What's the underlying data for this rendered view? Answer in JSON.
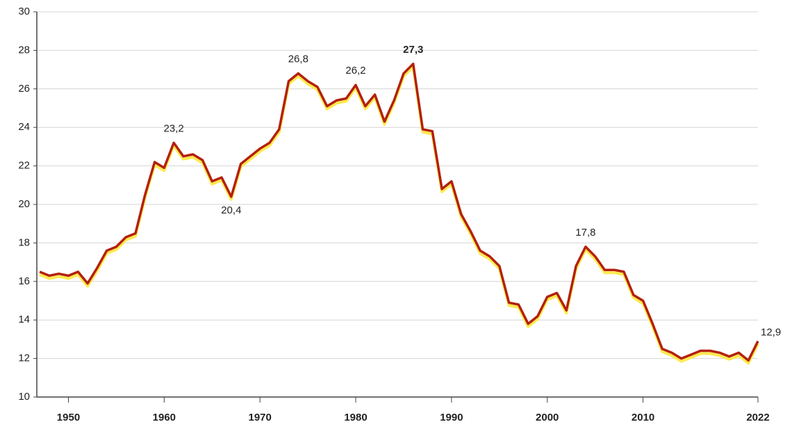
{
  "chart_data": {
    "type": "line",
    "x": [
      1947,
      1948,
      1949,
      1950,
      1951,
      1952,
      1953,
      1954,
      1955,
      1956,
      1957,
      1958,
      1959,
      1960,
      1961,
      1962,
      1963,
      1964,
      1965,
      1966,
      1967,
      1968,
      1969,
      1970,
      1971,
      1972,
      1973,
      1974,
      1975,
      1976,
      1977,
      1978,
      1979,
      1980,
      1981,
      1982,
      1983,
      1984,
      1985,
      1986,
      1987,
      1988,
      1989,
      1990,
      1991,
      1992,
      1993,
      1994,
      1995,
      1996,
      1997,
      1998,
      1999,
      2000,
      2001,
      2002,
      2003,
      2004,
      2005,
      2006,
      2007,
      2008,
      2009,
      2010,
      2011,
      2012,
      2013,
      2014,
      2015,
      2016,
      2017,
      2018,
      2019,
      2020,
      2021,
      2022
    ],
    "series": [
      {
        "color": "#b3200e",
        "shadow_color": "#ffe94d",
        "values": [
          16.5,
          16.3,
          16.4,
          16.3,
          16.5,
          15.9,
          16.7,
          17.6,
          17.8,
          18.3,
          18.5,
          20.5,
          22.2,
          21.9,
          23.2,
          22.5,
          22.6,
          22.3,
          21.2,
          21.4,
          20.4,
          22.1,
          22.5,
          22.9,
          23.2,
          23.9,
          26.4,
          26.8,
          26.4,
          26.1,
          25.1,
          25.4,
          25.5,
          26.2,
          25.1,
          25.7,
          24.3,
          25.4,
          26.8,
          27.3,
          23.9,
          23.8,
          20.8,
          21.2,
          19.5,
          18.6,
          17.6,
          17.3,
          16.8,
          14.9,
          14.8,
          13.8,
          14.2,
          15.2,
          15.4,
          14.5,
          16.8,
          17.8,
          17.3,
          16.6,
          16.6,
          16.5,
          15.3,
          15.0,
          13.8,
          12.5,
          12.3,
          12.0,
          12.2,
          12.4,
          12.4,
          12.3,
          12.1,
          12.3,
          11.9,
          12.9
        ],
        "value_labels": [
          null,
          null,
          null,
          null,
          null,
          null,
          null,
          null,
          null,
          null,
          null,
          null,
          null,
          null,
          "23,2",
          null,
          null,
          null,
          null,
          null,
          "20,4",
          null,
          null,
          null,
          null,
          null,
          null,
          "26,8",
          null,
          null,
          null,
          null,
          null,
          "26,2",
          null,
          null,
          null,
          null,
          null,
          "27,3",
          null,
          null,
          null,
          null,
          null,
          null,
          null,
          null,
          null,
          null,
          null,
          null,
          null,
          null,
          null,
          null,
          null,
          "17,8",
          null,
          null,
          null,
          null,
          null,
          null,
          null,
          null,
          null,
          null,
          null,
          null,
          null,
          null,
          null,
          null,
          null,
          "12,9"
        ]
      }
    ],
    "xlim": [
      1946.7,
      2022
    ],
    "xticks": [
      1950,
      1960,
      1970,
      1980,
      1990,
      2000,
      2010,
      2022
    ],
    "ylim": [
      10,
      30
    ],
    "yticks": [
      10,
      12,
      14,
      16,
      18,
      20,
      22,
      24,
      26,
      28,
      30
    ],
    "grid": true
  }
}
